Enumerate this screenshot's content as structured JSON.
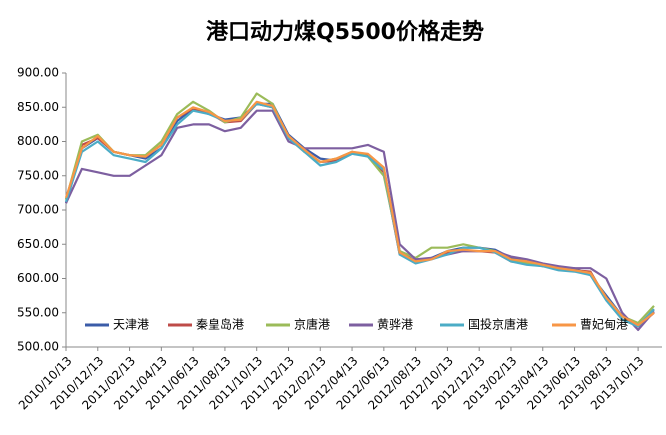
{
  "chart_data": {
    "type": "line",
    "title": "港口动力煤Q5500价格走势",
    "categories": [
      "2010/10/13",
      null,
      "2010/12/13",
      null,
      "2011/02/13",
      null,
      "2011/04/13",
      null,
      "2011/06/13",
      null,
      "2011/08/13",
      null,
      "2011/10/13",
      null,
      "2011/12/13",
      null,
      "2012/02/13",
      null,
      "2012/04/13",
      null,
      "2012/06/13",
      null,
      "2012/08/13",
      null,
      "2012/10/13",
      null,
      "2012/12/13",
      null,
      "2013/02/13",
      null,
      "2013/04/13",
      null,
      "2013/06/13",
      null,
      "2013/08/13",
      null,
      "2013/10/13",
      null
    ],
    "series": [
      {
        "name": "天津港",
        "color": "#3b5ca8",
        "values": [
          710,
          790,
          805,
          785,
          780,
          775,
          790,
          830,
          848,
          840,
          832,
          835,
          855,
          855,
          810,
          790,
          775,
          772,
          782,
          780,
          760,
          640,
          625,
          630,
          640,
          645,
          645,
          642,
          630,
          625,
          620,
          615,
          615,
          605,
          575,
          545,
          530,
          555
        ]
      },
      {
        "name": "秦皇岛港",
        "color": "#be4b48",
        "values": [
          715,
          795,
          805,
          785,
          780,
          778,
          795,
          835,
          848,
          842,
          828,
          830,
          855,
          850,
          805,
          785,
          770,
          772,
          785,
          780,
          755,
          635,
          625,
          628,
          638,
          640,
          640,
          638,
          625,
          622,
          618,
          615,
          612,
          610,
          570,
          545,
          530,
          550
        ]
      },
      {
        "name": "京唐港",
        "color": "#9bbb59",
        "values": [
          715,
          800,
          810,
          785,
          780,
          780,
          800,
          840,
          858,
          845,
          828,
          835,
          870,
          855,
          805,
          785,
          770,
          775,
          785,
          778,
          750,
          640,
          630,
          645,
          645,
          650,
          645,
          640,
          625,
          622,
          618,
          615,
          612,
          608,
          572,
          545,
          535,
          560
        ]
      },
      {
        "name": "黄骅港",
        "color": "#7d5fa0",
        "values": [
          710,
          760,
          755,
          750,
          750,
          765,
          780,
          820,
          825,
          825,
          815,
          820,
          845,
          845,
          800,
          790,
          790,
          790,
          790,
          795,
          785,
          650,
          628,
          630,
          635,
          640,
          640,
          640,
          632,
          628,
          622,
          618,
          615,
          615,
          600,
          550,
          525,
          552
        ]
      },
      {
        "name": "国投京唐港",
        "color": "#4bacc6",
        "values": [
          712,
          785,
          800,
          780,
          775,
          770,
          790,
          825,
          845,
          840,
          830,
          832,
          855,
          850,
          805,
          785,
          765,
          770,
          782,
          778,
          758,
          635,
          622,
          628,
          635,
          645,
          645,
          638,
          625,
          620,
          618,
          612,
          610,
          605,
          568,
          540,
          530,
          555
        ]
      },
      {
        "name": "曹妃甸港",
        "color": "#f79646",
        "values": [
          718,
          790,
          808,
          785,
          780,
          778,
          795,
          835,
          850,
          843,
          830,
          832,
          858,
          852,
          808,
          788,
          770,
          775,
          785,
          782,
          762,
          638,
          625,
          628,
          640,
          642,
          640,
          640,
          628,
          625,
          620,
          615,
          612,
          608,
          572,
          545,
          532,
          550
        ]
      }
    ],
    "ylim": [
      500,
      900
    ],
    "yticks": [
      {
        "value": 500,
        "label": "500.00"
      },
      {
        "value": 550,
        "label": "550.00"
      },
      {
        "value": 600,
        "label": "600.00"
      },
      {
        "value": 650,
        "label": "650.00"
      },
      {
        "value": 700,
        "label": "700.00"
      },
      {
        "value": 750,
        "label": "750.00"
      },
      {
        "value": 800,
        "label": "800.00"
      },
      {
        "value": 850,
        "label": "850.00"
      },
      {
        "value": 900,
        "label": "900.00"
      }
    ],
    "grid": false,
    "legend": "bottom"
  }
}
